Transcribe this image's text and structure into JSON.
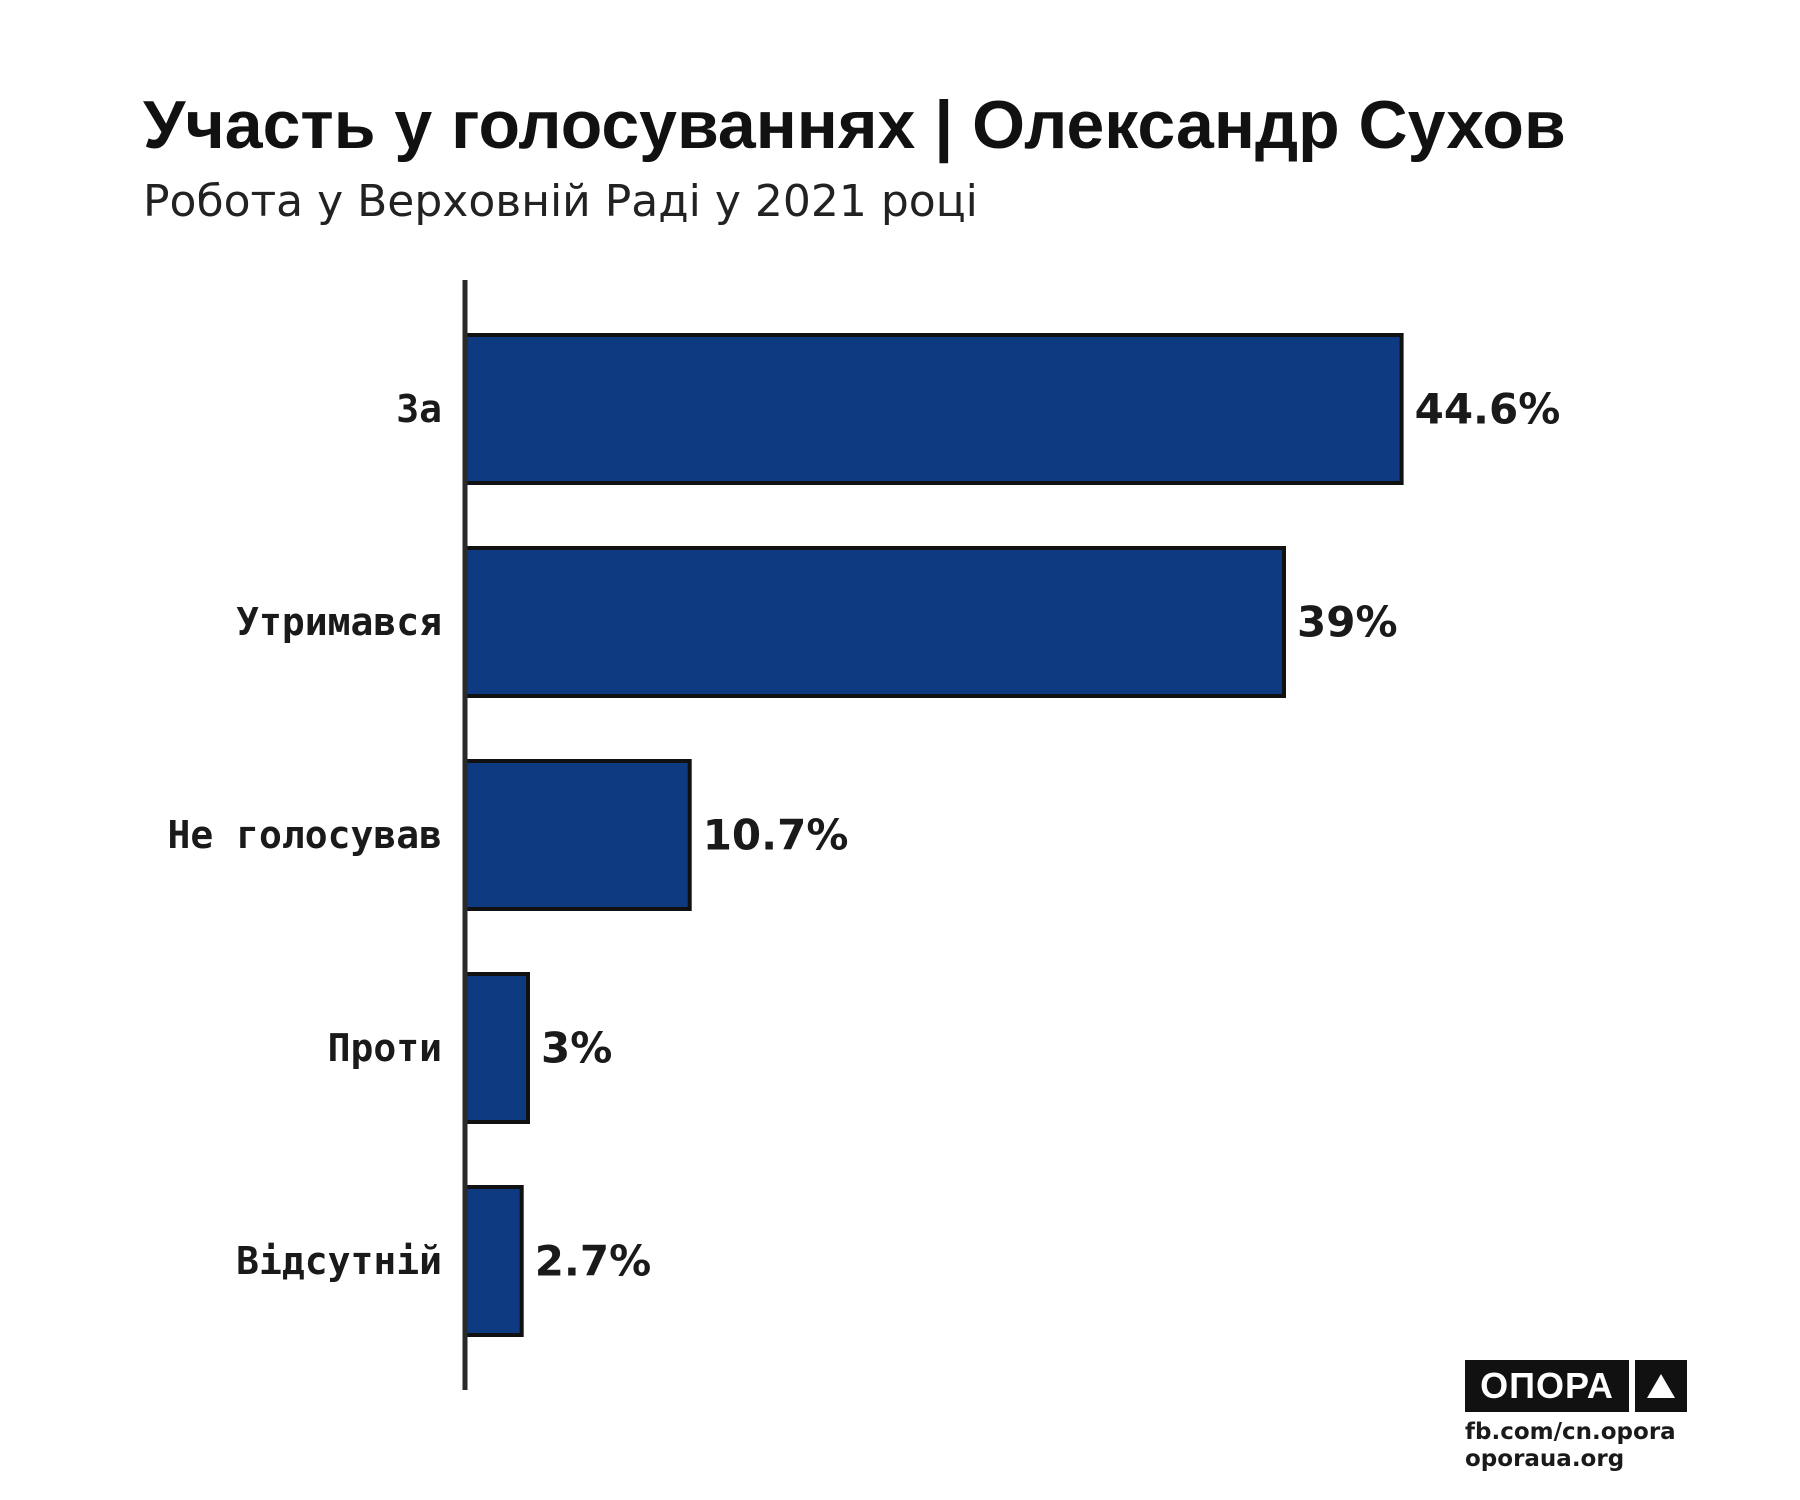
{
  "chart_data": {
    "type": "bar",
    "orientation": "horizontal",
    "title": "Участь у голосуваннях | Олександр Сухов",
    "subtitle": "Робота у Верховній Раді у 2021 році",
    "categories": [
      "За",
      "Утримався",
      "Не голосував",
      "Проти",
      "Відсутній"
    ],
    "values": [
      44.6,
      39,
      10.7,
      3,
      2.7
    ],
    "value_labels": [
      "44.6%",
      "39%",
      "10.7%",
      "3%",
      "2.7%"
    ],
    "xlim": [
      0,
      50
    ],
    "grid": false,
    "legend": "none",
    "bar_color": "#0d3a80",
    "bar_edge_color": "#111111",
    "axis_color": "#2a2a2a"
  },
  "branding": {
    "logo_text": "ОПОРА",
    "logo_icon": "triangle-up-icon",
    "link_facebook": "fb.com/cn.opora",
    "link_site": "oporaua.org"
  }
}
